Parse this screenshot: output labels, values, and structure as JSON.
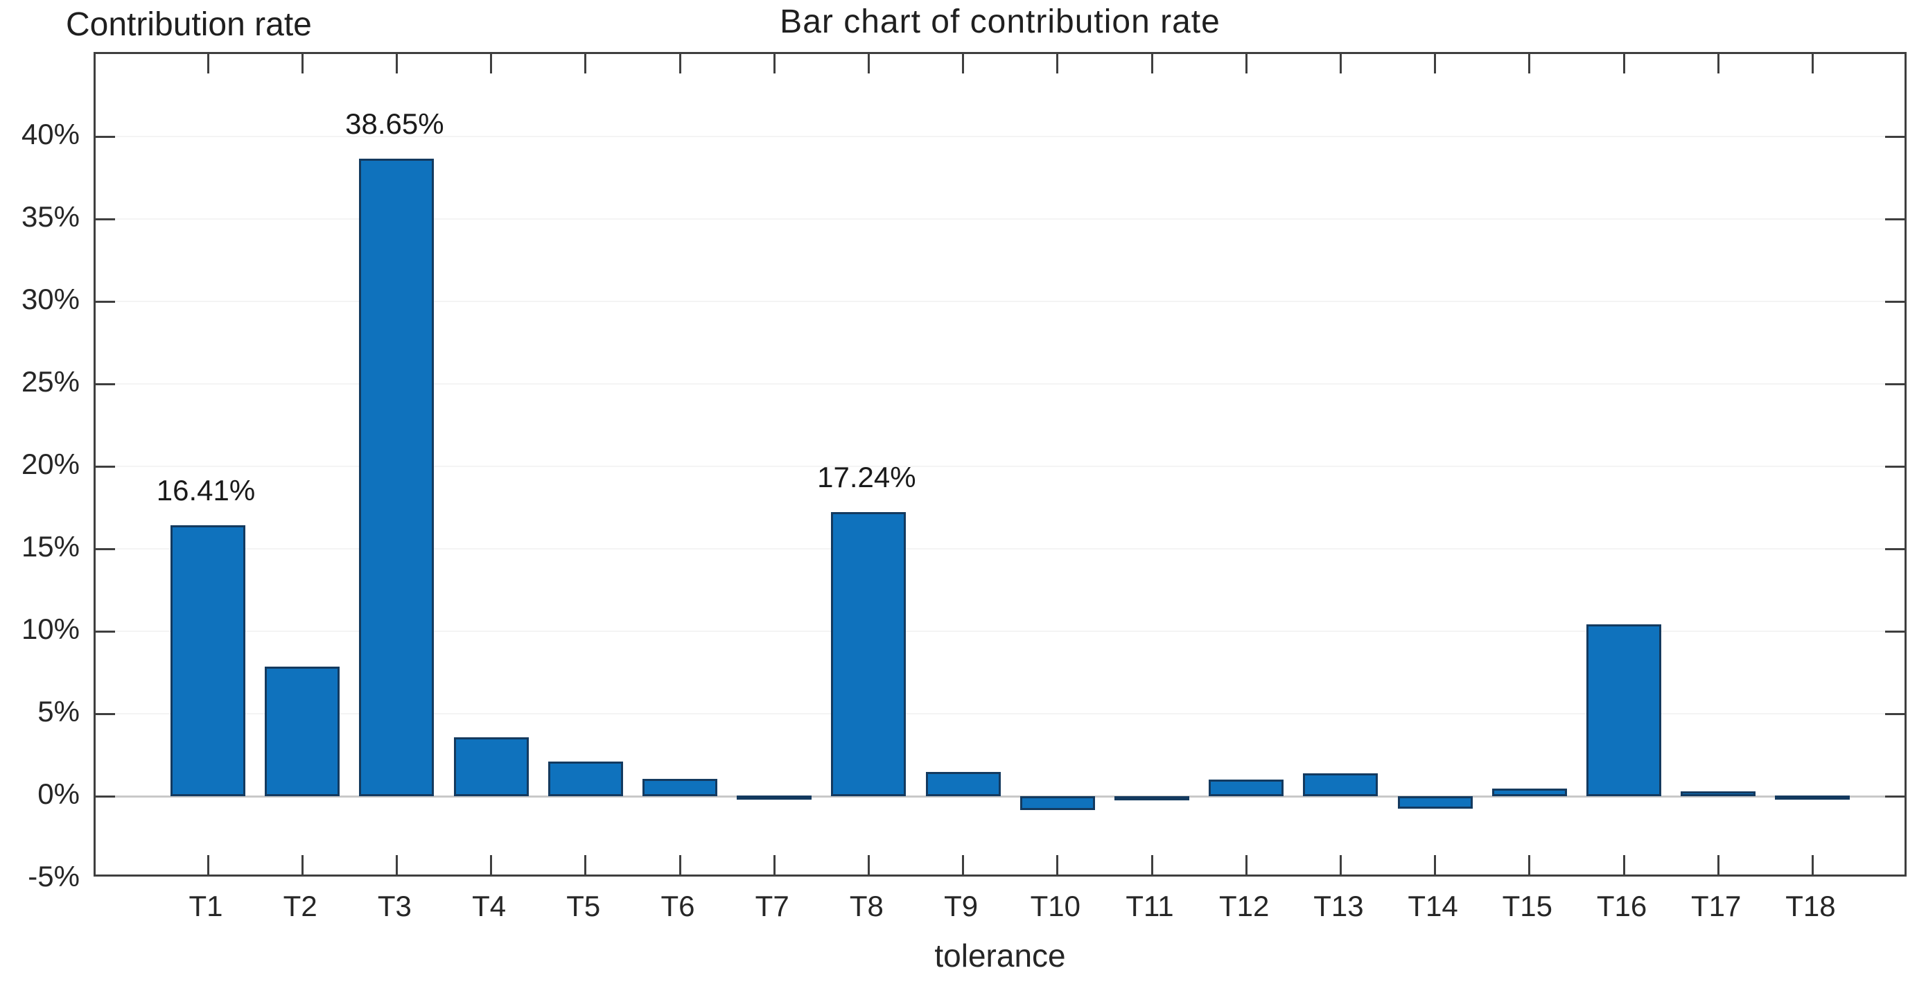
{
  "chart_data": {
    "type": "bar",
    "title": "Bar chart of contribution rate",
    "ylabel": "Contribution rate",
    "xlabel": "tolerance",
    "categories": [
      "T1",
      "T2",
      "T3",
      "T4",
      "T5",
      "T6",
      "T7",
      "T8",
      "T9",
      "T10",
      "T11",
      "T12",
      "T13",
      "T14",
      "T15",
      "T16",
      "T17",
      "T18"
    ],
    "values": [
      16.41,
      7.85,
      38.65,
      3.57,
      2.1,
      1.05,
      0.03,
      17.24,
      1.45,
      -0.85,
      -0.2,
      1.0,
      1.4,
      -0.75,
      0.45,
      10.4,
      0.3,
      0.03
    ],
    "value_labels": [
      {
        "index": 0,
        "text": "16.41%"
      },
      {
        "index": 2,
        "text": "38.65%"
      },
      {
        "index": 7,
        "text": "17.24%"
      }
    ],
    "yticks": [
      -5,
      0,
      5,
      10,
      15,
      20,
      25,
      30,
      35,
      40
    ],
    "ytick_suffix": "%",
    "ylim": [
      -5,
      45
    ],
    "grid": "off",
    "legend": "none",
    "box": "on",
    "tick_direction": "in",
    "bar_color": "#0f72bd",
    "bar_edge_color": "#143a5f",
    "axis_color": "#3f3f3f",
    "zero_baseline_color": "#c8c8c8",
    "text_color": "#262626"
  }
}
